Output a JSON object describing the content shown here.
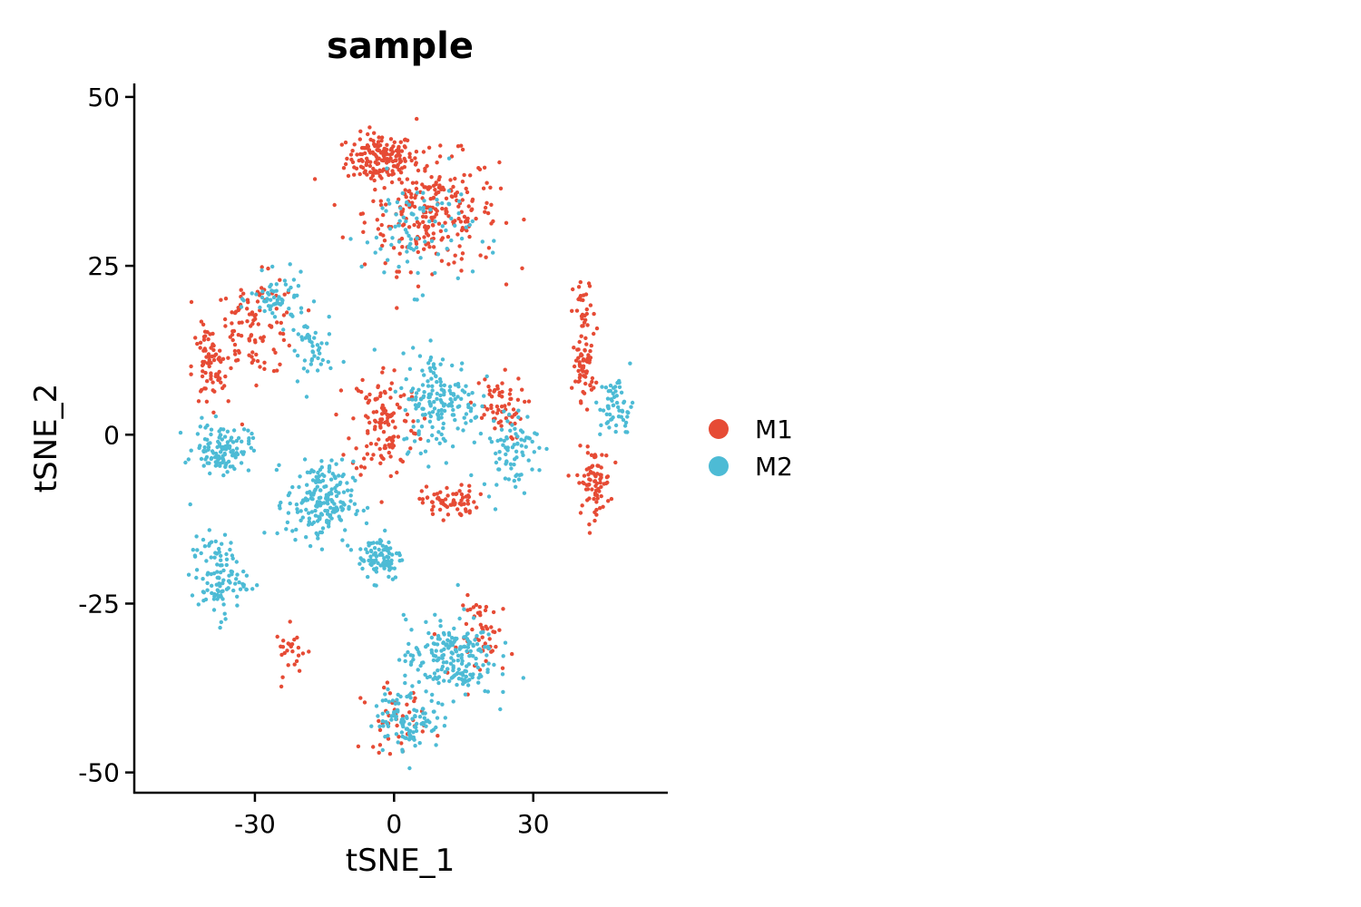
{
  "chart_data": {
    "type": "scatter",
    "title": "sample",
    "xlabel": "tSNE_1",
    "ylabel": "tSNE_2",
    "xlim": [
      -56,
      59
    ],
    "ylim": [
      -53,
      52
    ],
    "xticks": [
      -30,
      0,
      30
    ],
    "yticks": [
      50,
      25,
      0,
      -25,
      -50
    ],
    "xtick_labels": [
      "-30",
      "0",
      "30"
    ],
    "ytick_labels": [
      "50",
      "25",
      "0",
      "-25",
      "-50"
    ],
    "grid": false,
    "legend_position": "right",
    "series": [
      {
        "name": "M1",
        "color": "#E64B35",
        "clusters": [
          {
            "center": [
              -3,
              41
            ],
            "spread": [
              6,
              3
            ],
            "count": 160
          },
          {
            "center": [
              8,
              33
            ],
            "spread": [
              12,
              7
            ],
            "count": 260
          },
          {
            "center": [
              -30,
              16
            ],
            "spread": [
              8,
              6
            ],
            "count": 110
          },
          {
            "center": [
              -40,
              10
            ],
            "spread": [
              3,
              5
            ],
            "count": 70
          },
          {
            "center": [
              -2,
              2
            ],
            "spread": [
              6,
              7
            ],
            "count": 130
          },
          {
            "center": [
              22,
              4
            ],
            "spread": [
              5,
              4
            ],
            "count": 60
          },
          {
            "center": [
              12,
              -10
            ],
            "spread": [
              5,
              2
            ],
            "count": 70
          },
          {
            "center": [
              41,
              18
            ],
            "spread": [
              2,
              4
            ],
            "count": 30
          },
          {
            "center": [
              41,
              10
            ],
            "spread": [
              2,
              4
            ],
            "count": 60
          },
          {
            "center": [
              43,
              -7
            ],
            "spread": [
              3,
              4
            ],
            "count": 80
          },
          {
            "center": [
              20,
              -30
            ],
            "spread": [
              5,
              5
            ],
            "count": 50
          },
          {
            "center": [
              0,
              -42
            ],
            "spread": [
              6,
              4
            ],
            "count": 40
          },
          {
            "center": [
              -22,
              -32
            ],
            "spread": [
              3,
              3
            ],
            "count": 25
          }
        ],
        "count": 1145
      },
      {
        "name": "M2",
        "color": "#4DBBD5",
        "clusters": [
          {
            "center": [
              5,
              30
            ],
            "spread": [
              10,
              7
            ],
            "count": 90
          },
          {
            "center": [
              -25,
              20
            ],
            "spread": [
              5,
              3
            ],
            "count": 60
          },
          {
            "center": [
              -18,
              12
            ],
            "spread": [
              4,
              5
            ],
            "count": 45
          },
          {
            "center": [
              -37,
              -2
            ],
            "spread": [
              5,
              3
            ],
            "count": 120
          },
          {
            "center": [
              -16,
              -10
            ],
            "spread": [
              6,
              5
            ],
            "count": 190
          },
          {
            "center": [
              -3,
              -18
            ],
            "spread": [
              4,
              3
            ],
            "count": 90
          },
          {
            "center": [
              10,
              5
            ],
            "spread": [
              7,
              6
            ],
            "count": 170
          },
          {
            "center": [
              25,
              -2
            ],
            "spread": [
              5,
              5
            ],
            "count": 80
          },
          {
            "center": [
              48,
              4
            ],
            "spread": [
              3,
              4
            ],
            "count": 60
          },
          {
            "center": [
              -38,
              -21
            ],
            "spread": [
              5,
              5
            ],
            "count": 110
          },
          {
            "center": [
              12,
              -33
            ],
            "spread": [
              8,
              5
            ],
            "count": 200
          },
          {
            "center": [
              3,
              -42
            ],
            "spread": [
              6,
              4
            ],
            "count": 110
          }
        ],
        "count": 1325
      }
    ]
  }
}
